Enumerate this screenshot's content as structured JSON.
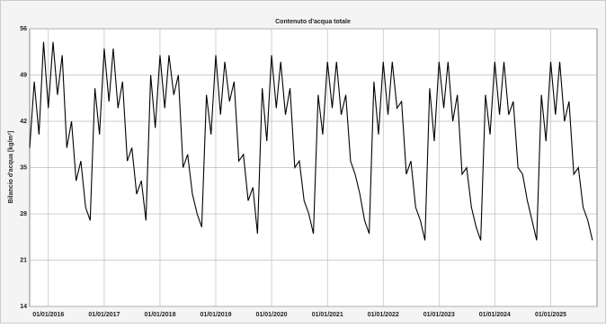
{
  "chart_data": {
    "type": "line",
    "title": "Contenuto d'acqua totale",
    "y_label": "Bilancio d'acqua [kg/m²]",
    "x": [
      "2015-09-01",
      "2015-10-01",
      "2015-11-01",
      "2015-12-01",
      "2016-01-01",
      "2016-02-01",
      "2016-03-01",
      "2016-04-01",
      "2016-05-01",
      "2016-06-01",
      "2016-07-01",
      "2016-08-01",
      "2016-09-01",
      "2016-10-01",
      "2016-11-01",
      "2016-12-01",
      "2017-01-01",
      "2017-02-01",
      "2017-03-01",
      "2017-04-01",
      "2017-05-01",
      "2017-06-01",
      "2017-07-01",
      "2017-08-01",
      "2017-09-01",
      "2017-10-01",
      "2017-11-01",
      "2017-12-01",
      "2018-01-01",
      "2018-02-01",
      "2018-03-01",
      "2018-04-01",
      "2018-05-01",
      "2018-06-01",
      "2018-07-01",
      "2018-08-01",
      "2018-09-01",
      "2018-10-01",
      "2018-11-01",
      "2018-12-01",
      "2019-01-01",
      "2019-02-01",
      "2019-03-01",
      "2019-04-01",
      "2019-05-01",
      "2019-06-01",
      "2019-07-01",
      "2019-08-01",
      "2019-09-01",
      "2019-10-01",
      "2019-11-01",
      "2019-12-01",
      "2020-01-01",
      "2020-02-01",
      "2020-03-01",
      "2020-04-01",
      "2020-05-01",
      "2020-06-01",
      "2020-07-01",
      "2020-08-01",
      "2020-09-01",
      "2020-10-01",
      "2020-11-01",
      "2020-12-01",
      "2021-01-01",
      "2021-02-01",
      "2021-03-01",
      "2021-04-01",
      "2021-05-01",
      "2021-06-01",
      "2021-07-01",
      "2021-08-01",
      "2021-09-01",
      "2021-10-01",
      "2021-11-01",
      "2021-12-01",
      "2022-01-01",
      "2022-02-01",
      "2022-03-01",
      "2022-04-01",
      "2022-05-01",
      "2022-06-01",
      "2022-07-01",
      "2022-08-01",
      "2022-09-01",
      "2022-10-01",
      "2022-11-01",
      "2022-12-01",
      "2023-01-01",
      "2023-02-01",
      "2023-03-01",
      "2023-04-01",
      "2023-05-01",
      "2023-06-01",
      "2023-07-01",
      "2023-08-01",
      "2023-09-01",
      "2023-10-01",
      "2023-11-01",
      "2023-12-01",
      "2024-01-01",
      "2024-02-01",
      "2024-03-01",
      "2024-04-01",
      "2024-05-01",
      "2024-06-01",
      "2024-07-01",
      "2024-08-01",
      "2024-09-01",
      "2024-10-01",
      "2024-11-01",
      "2024-12-01",
      "2025-01-01",
      "2025-02-01",
      "2025-03-01",
      "2025-04-01",
      "2025-05-01",
      "2025-06-01",
      "2025-07-01",
      "2025-08-01",
      "2025-09-01",
      "2025-10-01"
    ],
    "values": [
      38,
      48,
      40,
      54,
      44,
      54,
      46,
      52,
      38,
      42,
      33,
      36,
      29,
      27,
      47,
      40,
      53,
      45,
      53,
      44,
      48,
      36,
      38,
      31,
      33,
      27,
      49,
      41,
      52,
      44,
      52,
      46,
      49,
      35,
      37,
      31,
      28,
      26,
      46,
      40,
      52,
      43,
      51,
      45,
      48,
      36,
      37,
      30,
      32,
      25,
      47,
      39,
      52,
      44,
      51,
      43,
      47,
      35,
      36,
      30,
      28,
      25,
      46,
      40,
      51,
      44,
      51,
      43,
      46,
      36,
      34,
      31,
      27,
      25,
      48,
      40,
      51,
      43,
      51,
      44,
      45,
      34,
      36,
      29,
      27,
      24,
      47,
      39,
      51,
      44,
      51,
      42,
      46,
      34,
      35,
      29,
      26,
      24,
      46,
      40,
      51,
      43,
      51,
      43,
      45,
      35,
      34,
      30,
      27,
      24,
      46,
      39,
      51,
      43,
      51,
      42,
      45,
      34,
      35,
      29,
      27,
      24
    ],
    "color": "#000000",
    "xlim": [
      "2015-09-01",
      "2025-10-31"
    ],
    "xticks": [
      {
        "value": "2016-01-01",
        "label": "01/01/2016"
      },
      {
        "value": "2017-01-01",
        "label": "01/01/2017"
      },
      {
        "value": "2018-01-01",
        "label": "01/01/2018"
      },
      {
        "value": "2019-01-01",
        "label": "01/01/2019"
      },
      {
        "value": "2020-01-01",
        "label": "01/01/2020"
      },
      {
        "value": "2021-01-01",
        "label": "01/01/2021"
      },
      {
        "value": "2022-01-01",
        "label": "01/01/2022"
      },
      {
        "value": "2023-01-01",
        "label": "01/01/2023"
      },
      {
        "value": "2024-01-01",
        "label": "01/01/2024"
      },
      {
        "value": "2025-01-01",
        "label": "01/01/2025"
      }
    ],
    "ylim": [
      14,
      56
    ],
    "yticks": [
      14,
      21,
      28,
      35,
      42,
      49,
      56
    ],
    "grid": true
  }
}
